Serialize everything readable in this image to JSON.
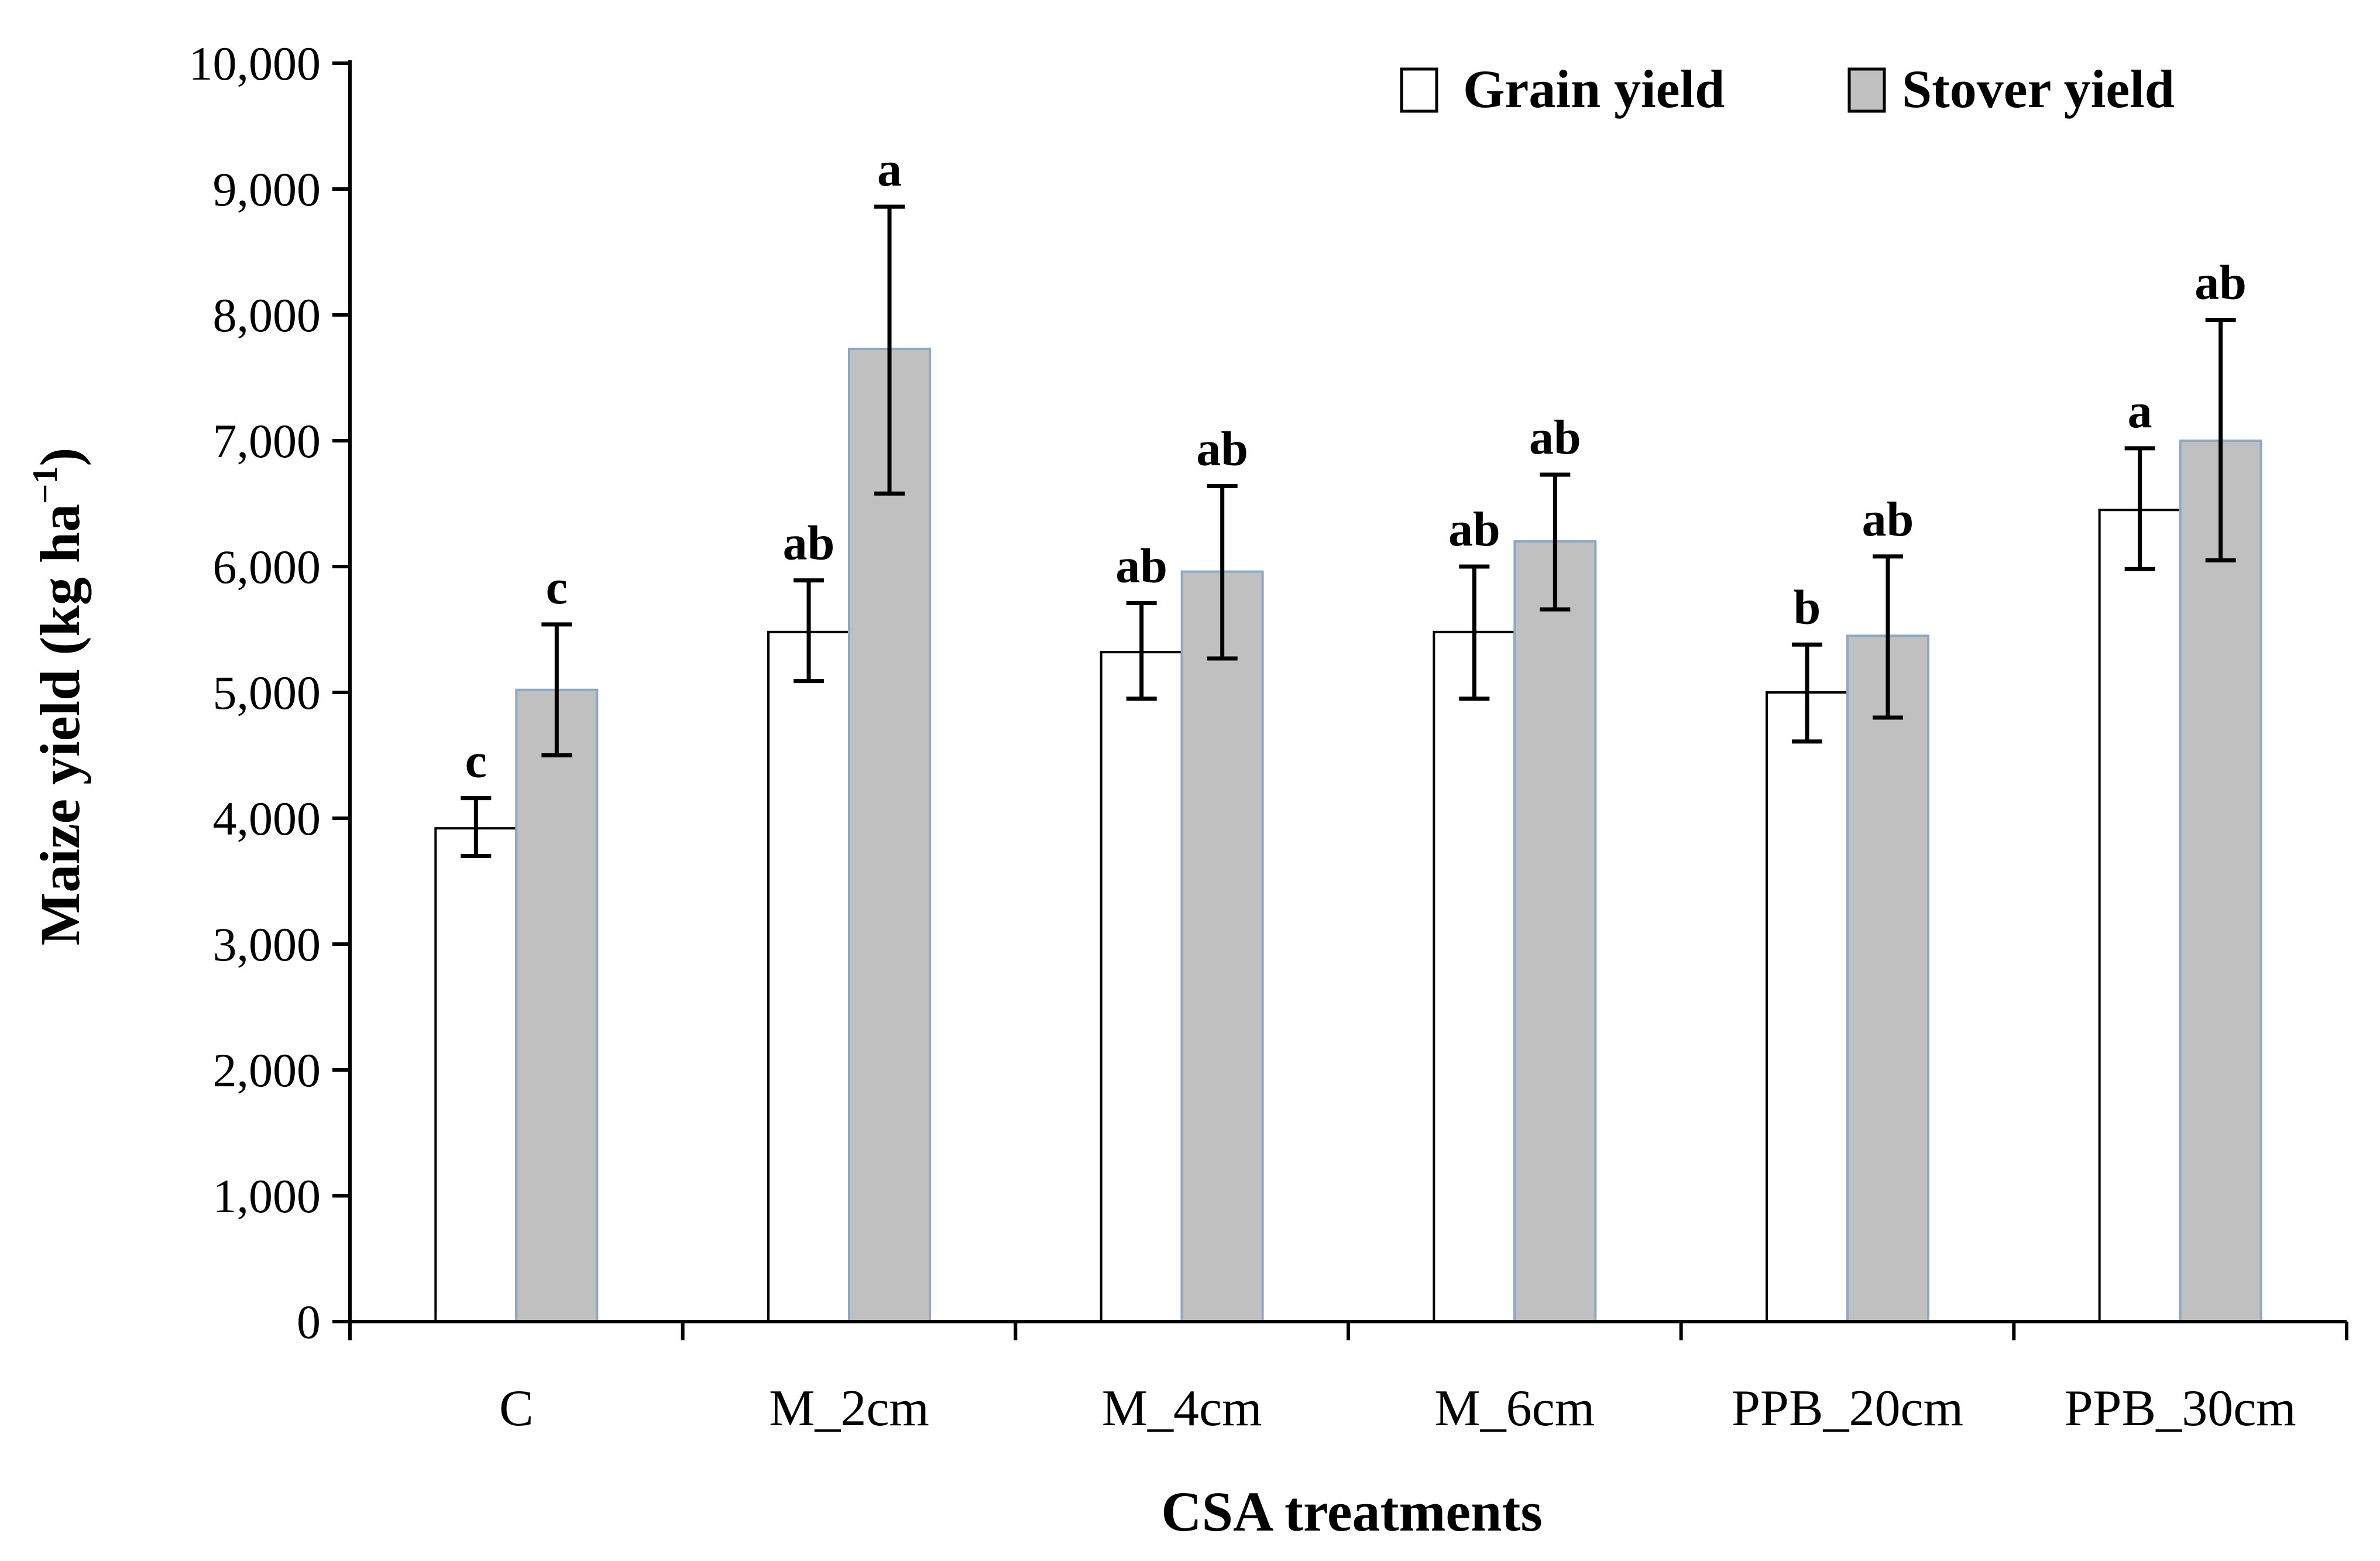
{
  "chart_data": {
    "type": "bar",
    "xlabel": "CSA treatments",
    "ylabel": {
      "main": "Maize yield (kg  ha",
      "superscript": "−1",
      "close": ")"
    },
    "ylim": [
      0,
      10000
    ],
    "yticks": [
      0,
      1000,
      2000,
      3000,
      4000,
      5000,
      6000,
      7000,
      8000,
      9000,
      10000
    ],
    "ytick_labels": [
      "0",
      "1,000",
      "2,000",
      "3,000",
      "4,000",
      "5,000",
      "6,000",
      "7,000",
      "8,000",
      "9,000",
      "10,000"
    ],
    "categories": [
      "C",
      "M_2cm",
      "M_4cm",
      "M_6cm",
      "PPB_20cm",
      "PPB_30cm"
    ],
    "legend_position": "top-right",
    "series": [
      {
        "name": "Grain yield",
        "fill": "#ffffff",
        "edge": "#000000",
        "values": [
          3920,
          5480,
          5320,
          5480,
          5000,
          6450
        ],
        "err_low": [
          3700,
          5090,
          4950,
          4950,
          4610,
          5980
        ],
        "err_high": [
          4160,
          5890,
          5710,
          6000,
          5380,
          6940
        ],
        "sig": [
          "c",
          "ab",
          "ab",
          "ab",
          "b",
          "a"
        ]
      },
      {
        "name": "Stover yield",
        "fill": "#c0c0c0",
        "edge": "#8ea9c1",
        "values": [
          5020,
          7730,
          5960,
          6200,
          5450,
          7000
        ],
        "err_low": [
          4500,
          6580,
          5270,
          5660,
          4800,
          6050
        ],
        "err_high": [
          5540,
          8860,
          6640,
          6730,
          6080,
          7960
        ],
        "sig": [
          "c",
          "a",
          "ab",
          "ab",
          "ab",
          "ab"
        ]
      }
    ]
  }
}
